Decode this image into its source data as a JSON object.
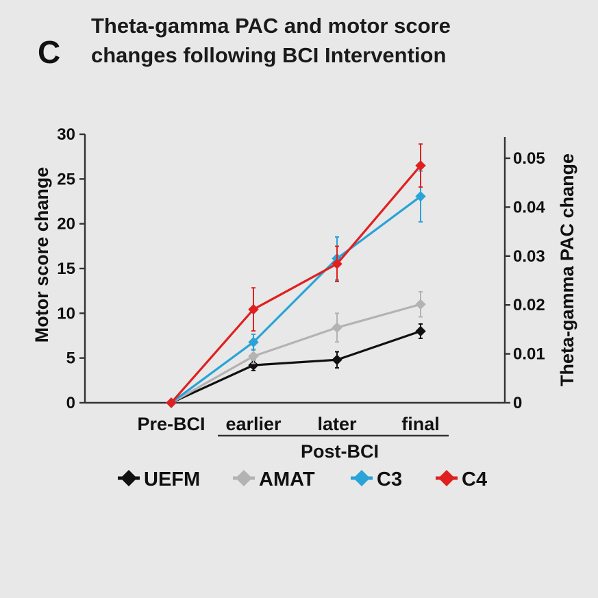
{
  "panel_letter": "C",
  "title_lines": [
    "Theta-gamma PAC and motor score",
    "changes following BCI Intervention"
  ],
  "chart_data": {
    "type": "line",
    "title": "Theta-gamma PAC and motor score changes following BCI Intervention",
    "categories": [
      "Pre-BCI",
      "earlier",
      "later",
      "final"
    ],
    "group_label": "Post-BCI",
    "group_categories": [
      "earlier",
      "later",
      "final"
    ],
    "ylabel_left": "Motor score change",
    "ylabel_right": "Theta-gamma PAC change",
    "ylim_left": [
      0,
      30
    ],
    "ylim_right": [
      0,
      0.055
    ],
    "yticks_left": [
      "0",
      "5",
      "10",
      "15",
      "20",
      "25",
      "30"
    ],
    "yticks_right": [
      "0",
      "0.01",
      "0.02",
      "0.03",
      "0.04",
      "0.05"
    ],
    "grid": false,
    "legend_position": "bottom",
    "series": [
      {
        "name": "UEFM",
        "axis": "left",
        "color": "#111111",
        "values": [
          0,
          4.2,
          4.8,
          8.0
        ],
        "errors": [
          0,
          0.6,
          0.9,
          0.8
        ]
      },
      {
        "name": "AMAT",
        "axis": "left",
        "color": "#b3b3b3",
        "values": [
          0,
          5.2,
          8.4,
          11.0
        ],
        "errors": [
          0,
          0.8,
          1.6,
          1.4
        ]
      },
      {
        "name": "C3",
        "axis": "right",
        "color": "#29a3d8",
        "values": [
          0,
          0.0124,
          0.0295,
          0.0422
        ],
        "errors": [
          0,
          0.0016,
          0.0044,
          0.0052
        ]
      },
      {
        "name": "C4",
        "axis": "right",
        "color": "#e02020",
        "values": [
          0,
          0.0191,
          0.0284,
          0.0485
        ],
        "errors": [
          0,
          0.0044,
          0.0036,
          0.0044
        ]
      }
    ]
  }
}
